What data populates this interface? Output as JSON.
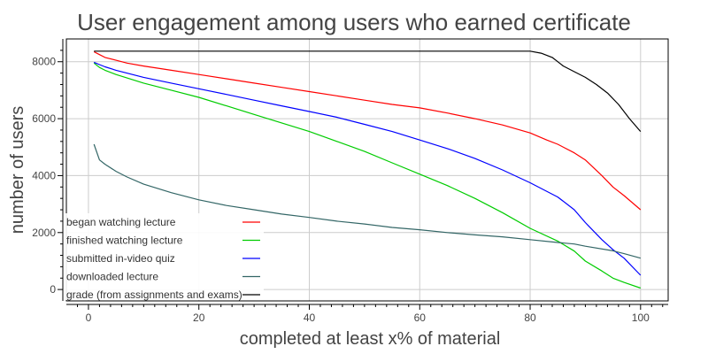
{
  "chart_data": {
    "type": "line",
    "title": "User engagement among users who earned certificate",
    "xlabel": "completed at least x% of material",
    "ylabel": "number of users",
    "xlim": [
      -4,
      105
    ],
    "ylim": [
      -400,
      8800
    ],
    "x_ticks": [
      0,
      20,
      40,
      60,
      80,
      100
    ],
    "y_ticks": [
      0,
      2000,
      4000,
      6000,
      8000
    ],
    "grid": true,
    "legend_position": "bottom-left",
    "series": [
      {
        "name": "began watching lecture",
        "color": "#ff0000",
        "x": [
          1,
          2,
          3,
          5,
          7,
          10,
          15,
          20,
          25,
          30,
          35,
          40,
          45,
          50,
          55,
          60,
          65,
          70,
          75,
          80,
          83,
          85,
          88,
          90,
          93,
          95,
          97,
          100
        ],
        "y": [
          8350,
          8250,
          8150,
          8050,
          7950,
          7850,
          7700,
          7550,
          7400,
          7250,
          7100,
          6950,
          6800,
          6650,
          6500,
          6380,
          6200,
          6000,
          5780,
          5500,
          5250,
          5100,
          4800,
          4550,
          4000,
          3600,
          3300,
          2800
        ]
      },
      {
        "name": "finished watching lecture",
        "color": "#00cc00",
        "x": [
          1,
          2,
          3,
          5,
          10,
          15,
          20,
          25,
          30,
          35,
          40,
          45,
          50,
          55,
          60,
          65,
          70,
          75,
          80,
          85,
          88,
          90,
          93,
          95,
          97,
          100
        ],
        "y": [
          7950,
          7800,
          7700,
          7550,
          7250,
          7000,
          6750,
          6450,
          6150,
          5850,
          5550,
          5200,
          4850,
          4450,
          4050,
          3650,
          3200,
          2700,
          2150,
          1700,
          1350,
          1000,
          650,
          400,
          250,
          50
        ]
      },
      {
        "name": "submitted in-video quiz",
        "color": "#0000ff",
        "x": [
          1,
          2,
          3,
          5,
          10,
          15,
          20,
          25,
          30,
          35,
          40,
          45,
          50,
          55,
          60,
          65,
          70,
          75,
          80,
          85,
          88,
          90,
          93,
          95,
          97,
          100
        ],
        "y": [
          7980,
          7900,
          7820,
          7700,
          7450,
          7250,
          7050,
          6850,
          6650,
          6450,
          6250,
          6050,
          5800,
          5550,
          5250,
          4950,
          4600,
          4200,
          3750,
          3250,
          2800,
          2350,
          1750,
          1400,
          1100,
          500
        ]
      },
      {
        "name": "downloaded lecture",
        "color": "#336666",
        "x": [
          1,
          2,
          3,
          5,
          7,
          10,
          15,
          20,
          25,
          30,
          35,
          40,
          45,
          50,
          55,
          60,
          65,
          70,
          75,
          80,
          85,
          88,
          90,
          95,
          97,
          100
        ],
        "y": [
          5100,
          4550,
          4400,
          4150,
          3950,
          3700,
          3400,
          3150,
          2950,
          2800,
          2650,
          2530,
          2400,
          2300,
          2180,
          2100,
          2000,
          1920,
          1850,
          1750,
          1650,
          1600,
          1520,
          1360,
          1260,
          1100
        ]
      },
      {
        "name": "grade (from assignments and exams)",
        "color": "#000000",
        "x": [
          1,
          5,
          10,
          20,
          30,
          40,
          50,
          60,
          70,
          80,
          82,
          84,
          85,
          86,
          88,
          90,
          92,
          94,
          96,
          98,
          100
        ],
        "y": [
          8370,
          8370,
          8370,
          8370,
          8370,
          8370,
          8370,
          8370,
          8370,
          8370,
          8300,
          8150,
          8000,
          7850,
          7650,
          7450,
          7200,
          6900,
          6500,
          6000,
          5550
        ]
      }
    ]
  }
}
